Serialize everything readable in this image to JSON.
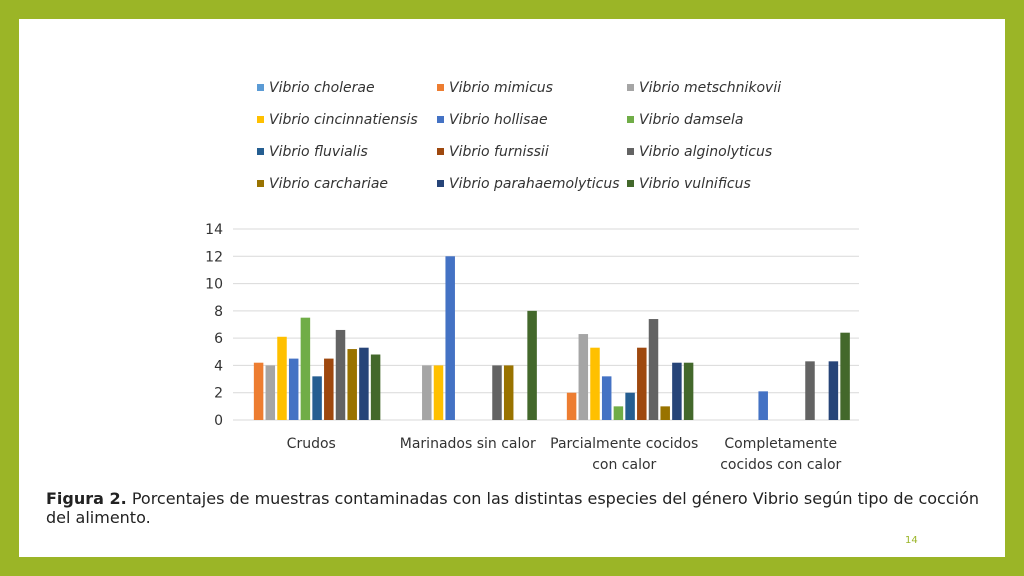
{
  "colors": {
    "frame": "#9bb527",
    "series": [
      "#5b9bd5",
      "#ed7d31",
      "#a5a5a5",
      "#ffc000",
      "#4472c4",
      "#70ad47",
      "#255e91",
      "#9e480e",
      "#636363",
      "#997300",
      "#264478",
      "#43682b"
    ]
  },
  "caption": {
    "label": "Figura 2.",
    "text": " Porcentajes de muestras contaminadas con las distintas especies del género Vibrio según tipo de cocción del alimento."
  },
  "page_number": "14",
  "chart_data": {
    "type": "bar",
    "categories": [
      [
        "Crudos"
      ],
      [
        "Marinados sin calor"
      ],
      [
        "Parcialmente cocidos",
        "con calor"
      ],
      [
        "Completamente",
        "cocidos con calor"
      ]
    ],
    "ylim": [
      0,
      14
    ],
    "yticks": [
      0,
      2,
      4,
      6,
      8,
      10,
      12,
      14
    ],
    "grid": true,
    "legend_position": "top",
    "series": [
      {
        "name": "Vibrio cholerae",
        "values": [
          0,
          0,
          0,
          0
        ]
      },
      {
        "name": "Vibrio mimicus",
        "values": [
          4.2,
          0,
          2,
          0
        ]
      },
      {
        "name": "Vibrio metschnikovii",
        "values": [
          4,
          4,
          6.3,
          0
        ]
      },
      {
        "name": "Vibrio cincinnatiensis",
        "values": [
          6.1,
          4,
          5.3,
          0
        ]
      },
      {
        "name": "Vibrio hollisae",
        "values": [
          4.5,
          12,
          3.2,
          2.1
        ]
      },
      {
        "name": "Vibrio damsela",
        "values": [
          7.5,
          0,
          1,
          0
        ]
      },
      {
        "name": "Vibrio fluvialis",
        "values": [
          3.2,
          0,
          2,
          0
        ]
      },
      {
        "name": "Vibrio furnissii",
        "values": [
          4.5,
          0,
          5.3,
          0
        ]
      },
      {
        "name": "Vibrio alginolyticus",
        "values": [
          6.6,
          4,
          7.4,
          4.3
        ]
      },
      {
        "name": "Vibrio carchariae",
        "values": [
          5.2,
          4,
          1,
          0
        ]
      },
      {
        "name": "Vibrio parahaemolyticus",
        "values": [
          5.3,
          0,
          4.2,
          4.3
        ]
      },
      {
        "name": "Vibrio vulnificus",
        "values": [
          4.8,
          8,
          4.2,
          6.4
        ]
      }
    ]
  }
}
